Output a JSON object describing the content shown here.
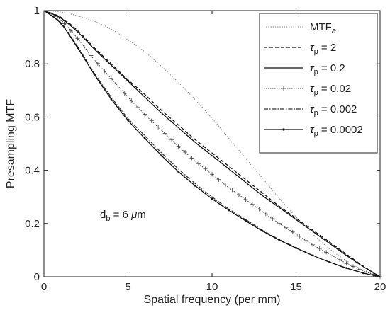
{
  "chart_data": {
    "type": "line",
    "xlabel": "Spatial frequency (per mm)",
    "ylabel": "Presampling MTF",
    "xlim": [
      0,
      20
    ],
    "ylim": [
      0,
      1
    ],
    "xticks": [
      "0",
      "5",
      "10",
      "15",
      "20"
    ],
    "yticks": [
      "0",
      "0.2",
      "0.4",
      "0.6",
      "0.8",
      "1"
    ],
    "grid": false,
    "legend_position": "top-right",
    "annotation": {
      "main": "d",
      "sub": "b",
      "rest": " = 6 ",
      "unit_greek": "μ",
      "unit": "m"
    },
    "x": [
      0,
      1,
      2,
      3,
      4,
      5,
      6,
      7,
      8,
      9,
      10,
      11,
      12,
      13,
      14,
      15,
      16,
      17,
      18,
      19,
      20
    ],
    "series": [
      {
        "name": "MTF",
        "name_sub": "a",
        "style": "dotted",
        "color": "#777777",
        "values": [
          1.0,
          0.995,
          0.98,
          0.96,
          0.93,
          0.89,
          0.845,
          0.79,
          0.73,
          0.665,
          0.595,
          0.52,
          0.445,
          0.37,
          0.295,
          0.225,
          0.16,
          0.105,
          0.06,
          0.025,
          0.0
        ]
      },
      {
        "name": "τ",
        "name_sub": "p",
        "name_rest": " = 2",
        "style": "dashed",
        "color": "#111111",
        "values": [
          1.0,
          0.975,
          0.925,
          0.86,
          0.8,
          0.74,
          0.685,
          0.625,
          0.57,
          0.515,
          0.465,
          0.415,
          0.365,
          0.315,
          0.265,
          0.22,
          0.175,
          0.13,
          0.085,
          0.04,
          0.0
        ]
      },
      {
        "name": "τ",
        "name_sub": "p",
        "name_rest": " = 0.2",
        "style": "solid",
        "color": "#111111",
        "values": [
          1.0,
          0.972,
          0.92,
          0.855,
          0.795,
          0.735,
          0.675,
          0.615,
          0.56,
          0.505,
          0.455,
          0.405,
          0.355,
          0.305,
          0.26,
          0.215,
          0.17,
          0.125,
          0.08,
          0.038,
          0.0
        ]
      },
      {
        "name": "τ",
        "name_sub": "p",
        "name_rest": " = 0.02",
        "style": "plus",
        "color": "#444444",
        "values": [
          1.0,
          0.965,
          0.895,
          0.815,
          0.745,
          0.675,
          0.61,
          0.55,
          0.49,
          0.435,
          0.385,
          0.335,
          0.29,
          0.245,
          0.2,
          0.16,
          0.12,
          0.085,
          0.05,
          0.022,
          0.0
        ]
      },
      {
        "name": "τ",
        "name_sub": "p",
        "name_rest": " = 0.002",
        "style": "dashdot",
        "color": "#333333",
        "values": [
          1.0,
          0.955,
          0.865,
          0.765,
          0.675,
          0.595,
          0.53,
          0.465,
          0.405,
          0.35,
          0.3,
          0.255,
          0.215,
          0.175,
          0.14,
          0.11,
          0.08,
          0.055,
          0.032,
          0.014,
          0.0
        ]
      },
      {
        "name": "τ",
        "name_sub": "p",
        "name_rest": " = 0.0002",
        "style": "solid-dot",
        "color": "#111111",
        "values": [
          1.0,
          0.952,
          0.86,
          0.76,
          0.668,
          0.588,
          0.52,
          0.455,
          0.395,
          0.342,
          0.293,
          0.25,
          0.21,
          0.172,
          0.138,
          0.108,
          0.08,
          0.055,
          0.033,
          0.014,
          0.0
        ]
      }
    ]
  }
}
